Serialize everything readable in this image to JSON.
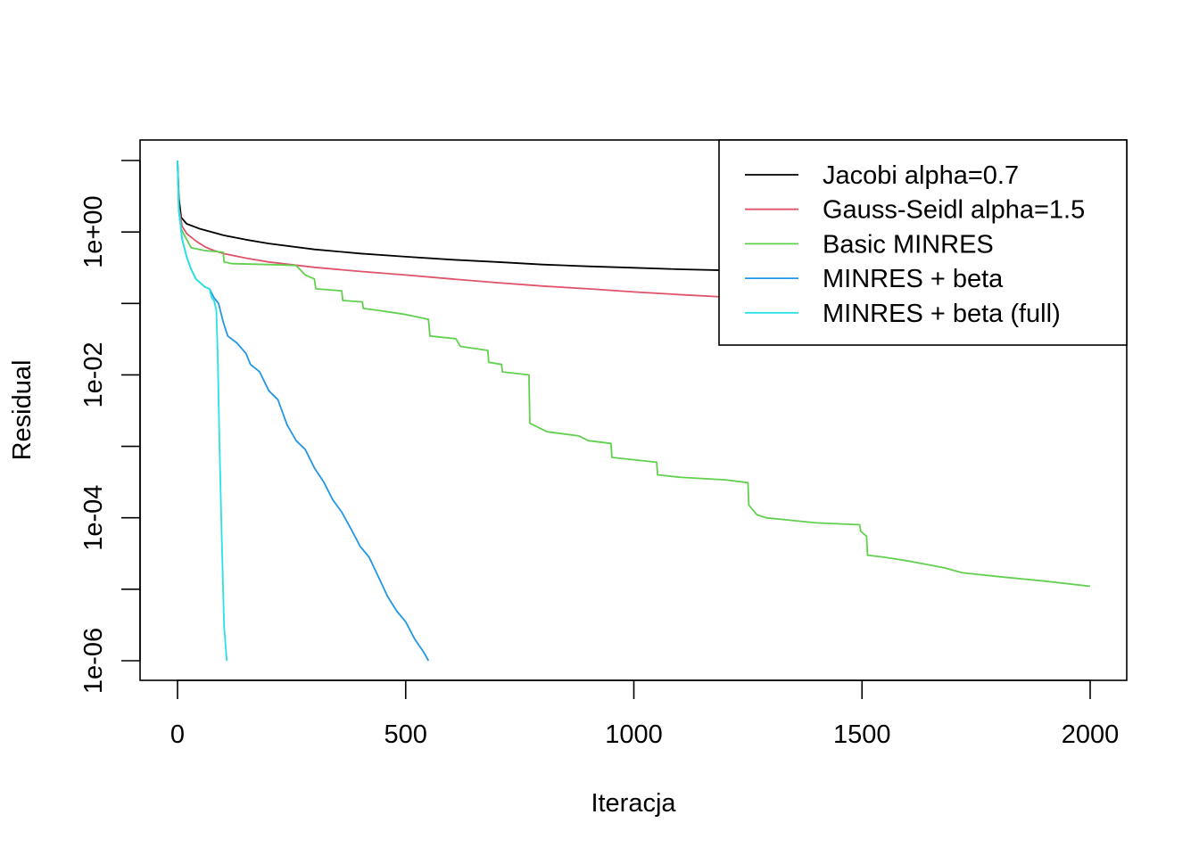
{
  "chart_data": {
    "type": "line",
    "title": "",
    "xlabel": "Iteracja",
    "ylabel": "Residual",
    "log_y": true,
    "xlim": [
      -80,
      2080
    ],
    "ylim": [
      1e-06,
      10
    ],
    "x_ticks": [
      0,
      500,
      1000,
      1500,
      2000
    ],
    "x_tick_labels": [
      "0",
      "500",
      "1000",
      "1500",
      "2000"
    ],
    "y_ticks": [
      10,
      1,
      0.1,
      0.01,
      0.001,
      0.0001,
      1e-05,
      1e-06
    ],
    "y_tick_labels": [
      "",
      "1e+00",
      "",
      "1e-02",
      "",
      "1e-04",
      "",
      "1e-06"
    ],
    "grid": false,
    "legend_position": "top-right",
    "series": [
      {
        "name": "Jacobi alpha=0.7",
        "color": "#000000",
        "points": [
          [
            0,
            10
          ],
          [
            3,
            3
          ],
          [
            8,
            1.6
          ],
          [
            20,
            1.3
          ],
          [
            50,
            1.1
          ],
          [
            100,
            0.9
          ],
          [
            150,
            0.78
          ],
          [
            200,
            0.69
          ],
          [
            300,
            0.57
          ],
          [
            400,
            0.5
          ],
          [
            500,
            0.45
          ],
          [
            600,
            0.41
          ],
          [
            700,
            0.38
          ],
          [
            800,
            0.35
          ],
          [
            900,
            0.33
          ],
          [
            1000,
            0.315
          ],
          [
            1100,
            0.3
          ],
          [
            1200,
            0.29
          ]
        ]
      },
      {
        "name": "Gauss-Seidl alpha=1.5",
        "color": "#DF536B",
        "points": [
          [
            0,
            10
          ],
          [
            3,
            2.2
          ],
          [
            10,
            1.2
          ],
          [
            20,
            0.95
          ],
          [
            40,
            0.75
          ],
          [
            60,
            0.62
          ],
          [
            80,
            0.55
          ],
          [
            100,
            0.5
          ],
          [
            150,
            0.43
          ],
          [
            200,
            0.38
          ],
          [
            300,
            0.32
          ],
          [
            400,
            0.28
          ],
          [
            500,
            0.25
          ],
          [
            600,
            0.22
          ],
          [
            700,
            0.195
          ],
          [
            800,
            0.175
          ],
          [
            900,
            0.16
          ],
          [
            1000,
            0.145
          ],
          [
            1100,
            0.133
          ],
          [
            1200,
            0.123
          ],
          [
            1280,
            0.115
          ]
        ]
      },
      {
        "name": "Basic MINRES",
        "color": "#61D04F",
        "points": [
          [
            0,
            10
          ],
          [
            3,
            2
          ],
          [
            8,
            1.1
          ],
          [
            15,
            0.9
          ],
          [
            30,
            0.6
          ],
          [
            60,
            0.55
          ],
          [
            100,
            0.52
          ],
          [
            102,
            0.38
          ],
          [
            120,
            0.36
          ],
          [
            200,
            0.35
          ],
          [
            260,
            0.34
          ],
          [
            280,
            0.25
          ],
          [
            300,
            0.22
          ],
          [
            303,
            0.16
          ],
          [
            360,
            0.15
          ],
          [
            362,
            0.11
          ],
          [
            405,
            0.105
          ],
          [
            407,
            0.085
          ],
          [
            440,
            0.08
          ],
          [
            500,
            0.07
          ],
          [
            550,
            0.06
          ],
          [
            553,
            0.035
          ],
          [
            610,
            0.032
          ],
          [
            620,
            0.025
          ],
          [
            680,
            0.022
          ],
          [
            682,
            0.015
          ],
          [
            710,
            0.014
          ],
          [
            712,
            0.011
          ],
          [
            770,
            0.01
          ],
          [
            772,
            0.0021
          ],
          [
            810,
            0.0016
          ],
          [
            880,
            0.0014
          ],
          [
            900,
            0.0012
          ],
          [
            950,
            0.0011
          ],
          [
            952,
            0.0007
          ],
          [
            1000,
            0.00065
          ],
          [
            1050,
            0.0006
          ],
          [
            1052,
            0.0004
          ],
          [
            1100,
            0.00037
          ],
          [
            1200,
            0.00034
          ],
          [
            1250,
            0.00031
          ],
          [
            1252,
            0.00015
          ],
          [
            1270,
            0.00011
          ],
          [
            1290,
            0.0001
          ],
          [
            1400,
            8.5e-05
          ],
          [
            1495,
            8e-05
          ],
          [
            1497,
            6.5e-05
          ],
          [
            1510,
            5.5e-05
          ],
          [
            1512,
            3e-05
          ],
          [
            1550,
            2.8e-05
          ],
          [
            1600,
            2.5e-05
          ],
          [
            1680,
            2e-05
          ],
          [
            1720,
            1.7e-05
          ],
          [
            1800,
            1.5e-05
          ],
          [
            1900,
            1.3e-05
          ],
          [
            2000,
            1.1e-05
          ]
        ]
      },
      {
        "name": "MINRES + beta",
        "color": "#2297E6",
        "points": [
          [
            0,
            10
          ],
          [
            3,
            2
          ],
          [
            10,
            0.8
          ],
          [
            20,
            0.45
          ],
          [
            30,
            0.3
          ],
          [
            40,
            0.22
          ],
          [
            60,
            0.17
          ],
          [
            70,
            0.16
          ],
          [
            80,
            0.12
          ],
          [
            90,
            0.1
          ],
          [
            100,
            0.055
          ],
          [
            110,
            0.035
          ],
          [
            130,
            0.028
          ],
          [
            150,
            0.02
          ],
          [
            160,
            0.014
          ],
          [
            180,
            0.011
          ],
          [
            200,
            0.006
          ],
          [
            220,
            0.0045
          ],
          [
            240,
            0.002
          ],
          [
            260,
            0.0012
          ],
          [
            280,
            0.0009
          ],
          [
            300,
            0.0005
          ],
          [
            320,
            0.00032
          ],
          [
            340,
            0.00018
          ],
          [
            360,
            0.00012
          ],
          [
            380,
            7e-05
          ],
          [
            400,
            4e-05
          ],
          [
            420,
            2.8e-05
          ],
          [
            440,
            1.5e-05
          ],
          [
            460,
            8e-06
          ],
          [
            480,
            5e-06
          ],
          [
            500,
            3.5e-06
          ],
          [
            520,
            2e-06
          ],
          [
            540,
            1.3e-06
          ],
          [
            550,
            1e-06
          ]
        ]
      },
      {
        "name": "MINRES + beta (full)",
        "color": "#28E2E5",
        "points": [
          [
            0,
            10
          ],
          [
            3,
            2
          ],
          [
            10,
            0.8
          ],
          [
            20,
            0.45
          ],
          [
            30,
            0.3
          ],
          [
            40,
            0.22
          ],
          [
            60,
            0.17
          ],
          [
            70,
            0.16
          ],
          [
            75,
            0.12
          ],
          [
            80,
            0.11
          ],
          [
            85,
            0.08
          ],
          [
            88,
            0.02
          ],
          [
            92,
            0.001
          ],
          [
            97,
            5e-05
          ],
          [
            102,
            3e-06
          ],
          [
            108,
            1e-06
          ]
        ]
      }
    ]
  }
}
